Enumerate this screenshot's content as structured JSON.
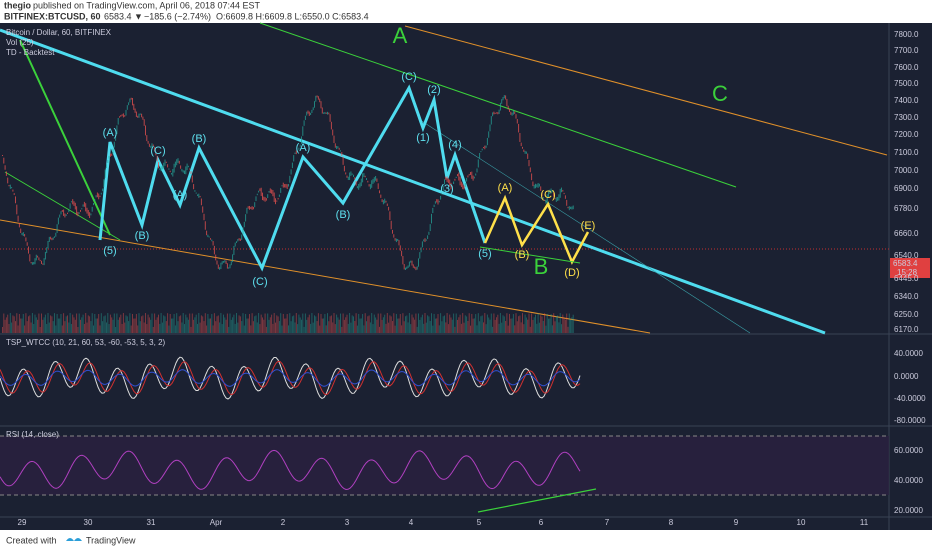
{
  "header": {
    "author": "thegio",
    "published": "published on TradingView.com, April 06, 2018 07:44 EST",
    "symbol": "BITFINEX:BTCUSD, 60",
    "last": "6583.4",
    "arrow": "▼",
    "change": "−185.6 (−2.74%)",
    "ohlc": "O:6609.8 H:6609.8 L:6550.0 C:6583.4"
  },
  "legend": [
    "Bitcoin / Dollar, 60, BITFINEX",
    "Vol (25)",
    "TD - Backtest"
  ],
  "price_axis": [
    "7800.0",
    "7700.0",
    "7600.0",
    "7500.0",
    "7400.0",
    "7300.0",
    "7200.0",
    "7100.0",
    "7000.0",
    "6900.0",
    "6780.0",
    "6660.0",
    "6540.0",
    "6445.0",
    "6340.0",
    "6250.0",
    "6170.0"
  ],
  "price_tag": {
    "price": "6583.4",
    "countdown": "15:28"
  },
  "oscillator": {
    "title": "TSP_WTCC (10, 21, 60, 53, -60, -53, 5, 3, 2)",
    "axis": [
      "40.0000",
      "0.0000",
      "-40.0000",
      "-80.0000"
    ]
  },
  "rsi": {
    "title": "RSI (14, close)",
    "axis": [
      "60.0000",
      "40.0000",
      "20.0000"
    ]
  },
  "time_axis": [
    "29",
    "30",
    "31",
    "Apr",
    "2",
    "3",
    "4",
    "5",
    "6",
    "7",
    "8",
    "9",
    "10",
    "11"
  ],
  "big_labels": [
    "A",
    "C",
    "B"
  ],
  "wave_labels": [
    "(A)",
    "(B)",
    "(C)",
    "(A)",
    "(B)",
    "(C)",
    "(A)",
    "(B)",
    "(C)",
    "(2)",
    "(1)",
    "(4)",
    "(3)",
    "(5)",
    "(5)"
  ],
  "wave_labels_yellow": [
    "(A)",
    "(B)",
    "(C)",
    "(D)",
    "(E)"
  ],
  "footer": {
    "created": "Created with",
    "brand": "TradingView"
  }
}
